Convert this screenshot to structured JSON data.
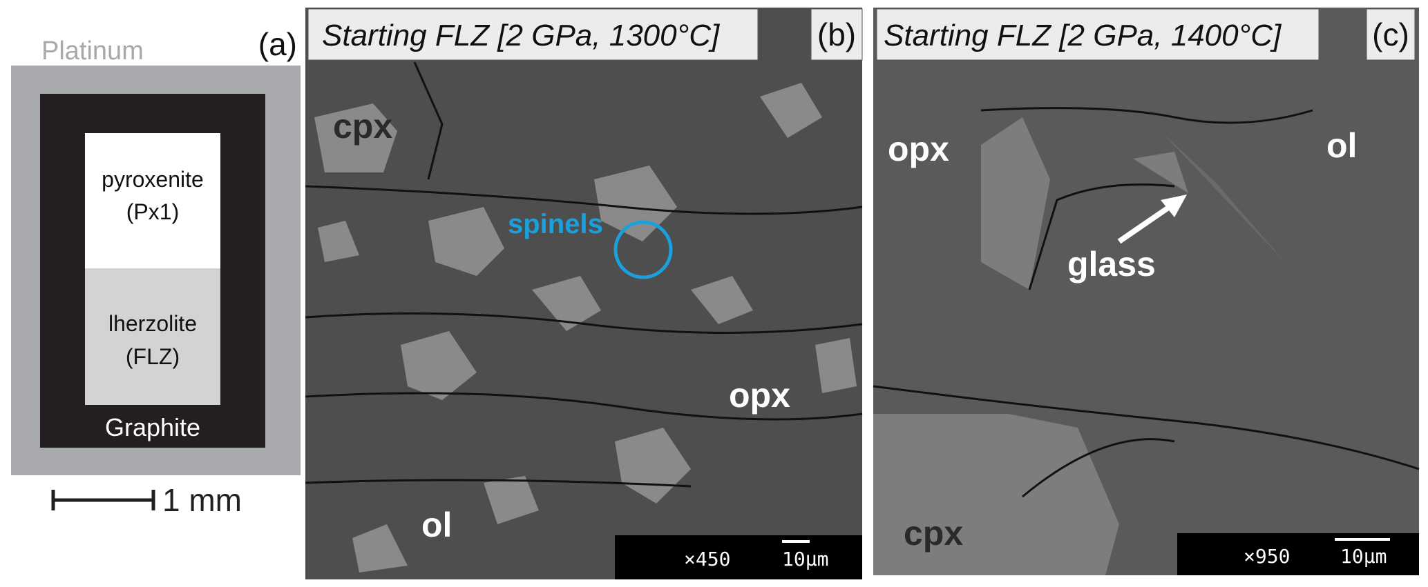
{
  "panel_a": {
    "label": "(a)",
    "outer": "Platinum",
    "inner": "Graphite",
    "upper_sample": [
      "pyroxenite",
      "(Px1)"
    ],
    "lower_sample": [
      "lherzolite",
      "(FLZ)"
    ],
    "scale": "1 mm"
  },
  "panel_b": {
    "title": "Starting FLZ [2 GPa, 1300°C]",
    "label": "(b)",
    "phases": [
      "cpx",
      "spinels",
      "opx",
      "ol"
    ],
    "magnification": "×450",
    "scale": "10μm"
  },
  "panel_c": {
    "title": "Starting FLZ [2 GPa, 1400°C]",
    "label": "(c)",
    "phases": [
      "opx",
      "ol",
      "glass",
      "cpx"
    ],
    "magnification": "×950",
    "scale": "10μm"
  }
}
